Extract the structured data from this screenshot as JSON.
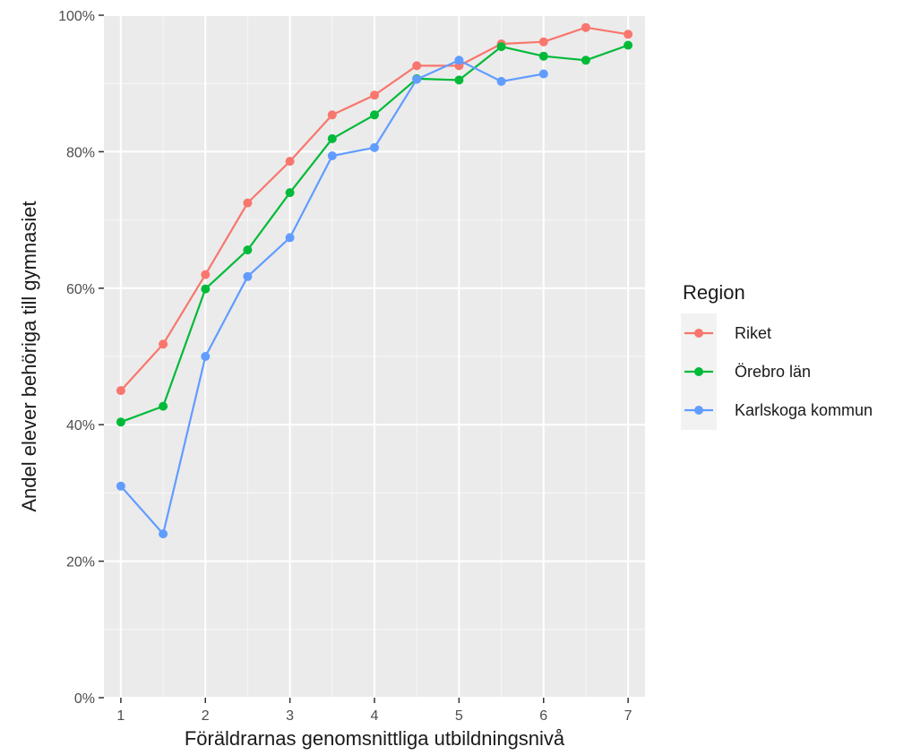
{
  "chart_data": {
    "type": "line",
    "title": "",
    "xlabel": "Föräldrarnas genomsnittliga utbildningsnivå",
    "ylabel": "Andel elever behöriga till gymnasiet",
    "x": [
      1,
      1.5,
      2,
      2.5,
      3,
      3.5,
      4,
      4.5,
      5,
      5.5,
      6,
      6.5,
      7
    ],
    "xticks": [
      "1",
      "2",
      "3",
      "4",
      "5",
      "6",
      "7"
    ],
    "yticks": [
      "0%",
      "20%",
      "40%",
      "60%",
      "80%",
      "100%"
    ],
    "xlim": [
      0.8,
      7.2
    ],
    "ylim": [
      0,
      100
    ],
    "grid": true,
    "panel_background": "#ebebeb",
    "legend": {
      "title": "Region",
      "position": "right"
    },
    "series": [
      {
        "name": "Riket",
        "color": "#f8766d",
        "x": [
          1,
          1.5,
          2,
          2.5,
          3,
          3.5,
          4,
          4.5,
          5,
          5.5,
          6,
          6.5,
          7
        ],
        "values": [
          45.0,
          51.8,
          62.0,
          72.5,
          78.6,
          85.4,
          88.3,
          92.6,
          92.6,
          95.8,
          96.1,
          98.2,
          97.2
        ]
      },
      {
        "name": "Örebro län",
        "color": "#00ba38",
        "x": [
          1,
          1.5,
          2,
          2.5,
          3,
          3.5,
          4,
          4.5,
          5,
          5.5,
          6,
          6.5,
          7
        ],
        "values": [
          40.4,
          42.7,
          59.9,
          65.6,
          74.0,
          81.9,
          85.4,
          90.7,
          90.5,
          95.4,
          94.0,
          93.4,
          95.6
        ]
      },
      {
        "name": "Karlskoga kommun",
        "color": "#619cff",
        "x": [
          1,
          1.5,
          2,
          2.5,
          3,
          3.5,
          4,
          4.5,
          5,
          5.5,
          6
        ],
        "values": [
          31.0,
          24.0,
          50.0,
          61.7,
          67.4,
          79.4,
          80.6,
          90.6,
          93.4,
          90.3,
          91.4
        ]
      }
    ]
  }
}
